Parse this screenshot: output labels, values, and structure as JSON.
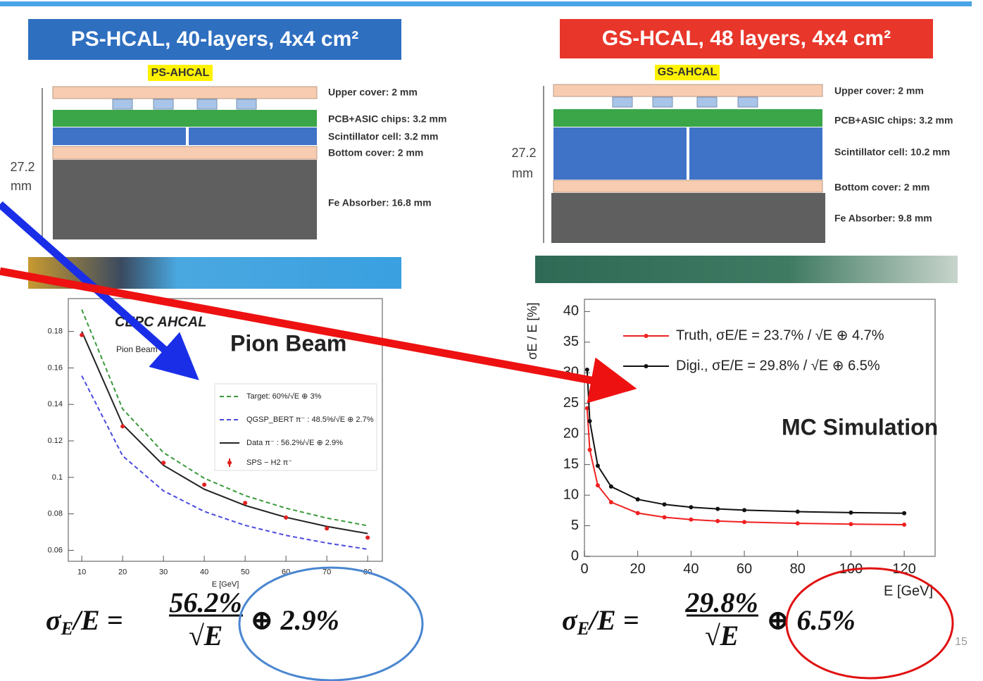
{
  "header": {
    "left_title": "PS-HCAL, 40-layers, 4x4 cm²",
    "right_title": "GS-HCAL, 48 layers, 4x4 cm²"
  },
  "diagrams": [
    {
      "name": "PS-AHCAL",
      "height": "27.2",
      "unit": "mm",
      "layers": [
        "Upper cover: 2 mm",
        "PCB+ASIC chips: 3.2 mm",
        "Scintillator cell: 3.2 mm",
        "Bottom cover: 2 mm",
        "Fe Absorber: 16.8 mm"
      ]
    },
    {
      "name": "GS-AHCAL",
      "height": "27.2",
      "unit": "mm",
      "layers": [
        "Upper cover: 2 mm",
        "PCB+ASIC chips: 3.2 mm",
        "Scintillator cell: 10.2 mm",
        "Bottom cover: 2 mm",
        "Fe Absorber: 9.8 mm"
      ]
    }
  ],
  "chart_data": [
    {
      "type": "line",
      "x_label": "E [GeV]",
      "annotations": [
        "CEPC AHCAL",
        "Pion Beam",
        "Pion Beam"
      ],
      "x": [
        10,
        20,
        30,
        40,
        50,
        60,
        70,
        80
      ],
      "xlim": [
        6.7,
        83.6
      ],
      "xticks": [
        10,
        20,
        30,
        40,
        50,
        60,
        70,
        80
      ],
      "ylim": [
        0.054,
        0.198
      ],
      "yticks": [
        0.06,
        0.08,
        0.1,
        0.12,
        0.14,
        0.16,
        0.18
      ],
      "series": [
        {
          "name": "Target: 60%/√E ⊕ 3%",
          "color": "#3a9a3a",
          "style": "dashed",
          "values": [
            0.192,
            0.1375,
            0.1136,
            0.0995,
            0.09,
            0.0831,
            0.0777,
            0.0735
          ]
        },
        {
          "name": "QGSP_BERT π⁻ : 48.5%/√E ⊕ 2.7%",
          "color": "#4a4ae0",
          "style": "dashed",
          "values": [
            0.1557,
            0.1118,
            0.0926,
            0.0813,
            0.0737,
            0.0682,
            0.064,
            0.0606
          ]
        },
        {
          "name": "Data π⁻ : 56.2%/√E ⊕ 2.9%",
          "color": "#222222",
          "style": "solid",
          "values": [
            0.18,
            0.129,
            0.1066,
            0.0935,
            0.0846,
            0.0781,
            0.0731,
            0.0692
          ]
        },
        {
          "name": "SPS − H2 π⁻",
          "color": "#e02020",
          "style": "points",
          "values": [
            0.178,
            0.128,
            0.108,
            0.096,
            0.086,
            0.078,
            0.072,
            0.067
          ]
        }
      ]
    },
    {
      "type": "line",
      "x_label": "E [GeV]",
      "y_label": "σE / E [%]",
      "annotations": [
        "MC Simulation"
      ],
      "x": [
        1,
        2,
        5,
        10,
        20,
        30,
        40,
        50,
        60,
        80,
        100,
        120
      ],
      "xlim": [
        0,
        131.6
      ],
      "xticks": [
        0,
        20,
        40,
        60,
        80,
        100,
        120
      ],
      "ylim": [
        0,
        42
      ],
      "yticks": [
        0,
        5,
        10,
        15,
        20,
        25,
        30,
        35,
        40
      ],
      "series": [
        {
          "name": "Truth, σE/E = 23.7% / √E ⊕ 4.7%",
          "color": "#f02020",
          "style": "line+points",
          "values": [
            24.2,
            17.4,
            11.6,
            8.85,
            7.08,
            6.39,
            6.01,
            5.77,
            5.61,
            5.4,
            5.26,
            5.18
          ]
        },
        {
          "name": "Digi., σE/E = 29.8% / √E ⊕ 6.5%",
          "color": "#111111",
          "style": "line+points",
          "values": [
            30.5,
            22.1,
            14.8,
            11.4,
            9.31,
            8.48,
            8.03,
            7.75,
            7.55,
            7.3,
            7.15,
            7.05
          ]
        }
      ]
    }
  ],
  "formulas": [
    {
      "sigma": "σ",
      "sub": "E",
      "rest": "/E =",
      "numerator": "56.2%",
      "denominator": "√E",
      "term": "⊕ 2.9%"
    },
    {
      "sigma": "σ",
      "sub": "E",
      "rest": "/E =",
      "numerator": "29.8%",
      "denominator": "√E",
      "term": "⊕ 6.5%"
    }
  ],
  "page_number": "15"
}
